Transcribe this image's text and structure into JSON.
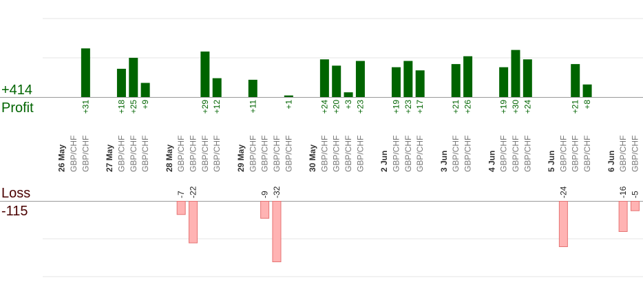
{
  "chart_data": {
    "type": "bar",
    "profit_label": "Profit",
    "profit_total": "+414",
    "loss_label": "Loss",
    "loss_total": "-115",
    "colors": {
      "profit_bar": "#006400",
      "profit_text": "#006400",
      "loss_bar": "#ffb3b3",
      "loss_bar_stroke": "#e57373",
      "loss_label_text": "#4a0000",
      "grid": "#e6e6e6",
      "axis": "#999999",
      "date_text": "#333333",
      "symbol_text": "#777777"
    },
    "columns": [
      {
        "kind": "date",
        "text": "26 May"
      },
      {
        "kind": "trade",
        "symbol": "GBP/CHF",
        "pnl": null
      },
      {
        "kind": "trade",
        "symbol": "GBP/CHF",
        "pnl": 31
      },
      {
        "kind": "gap"
      },
      {
        "kind": "date",
        "text": "27 May"
      },
      {
        "kind": "trade",
        "symbol": "GBP/CHF",
        "pnl": 18
      },
      {
        "kind": "trade",
        "symbol": "GBP/CHF",
        "pnl": 25
      },
      {
        "kind": "trade",
        "symbol": "GBP/CHF",
        "pnl": 9
      },
      {
        "kind": "gap"
      },
      {
        "kind": "date",
        "text": "28 May"
      },
      {
        "kind": "trade",
        "symbol": "GBP/CHF",
        "pnl": -7
      },
      {
        "kind": "trade",
        "symbol": "GBP/CHF",
        "pnl": -22
      },
      {
        "kind": "trade",
        "symbol": "GBP/CHF",
        "pnl": 29
      },
      {
        "kind": "trade",
        "symbol": "GBP/CHF",
        "pnl": 12
      },
      {
        "kind": "gap"
      },
      {
        "kind": "date",
        "text": "29 May"
      },
      {
        "kind": "trade",
        "symbol": "GBP/CHF",
        "pnl": 11
      },
      {
        "kind": "trade",
        "symbol": "GBP/CHF",
        "pnl": -9
      },
      {
        "kind": "trade",
        "symbol": "GBP/CHF",
        "pnl": -32
      },
      {
        "kind": "trade",
        "symbol": "GBP/CHF",
        "pnl": 1
      },
      {
        "kind": "gap"
      },
      {
        "kind": "date",
        "text": "30 May"
      },
      {
        "kind": "trade",
        "symbol": "GBP/CHF",
        "pnl": 24
      },
      {
        "kind": "trade",
        "symbol": "GBP/CHF",
        "pnl": 20
      },
      {
        "kind": "trade",
        "symbol": "GBP/CHF",
        "pnl": 3
      },
      {
        "kind": "trade",
        "symbol": "GBP/CHF",
        "pnl": 23
      },
      {
        "kind": "gap"
      },
      {
        "kind": "date",
        "text": "2 Jun"
      },
      {
        "kind": "trade",
        "symbol": "GBP/CHF",
        "pnl": 19
      },
      {
        "kind": "trade",
        "symbol": "GBP/CHF",
        "pnl": 23
      },
      {
        "kind": "trade",
        "symbol": "GBP/CHF",
        "pnl": 17
      },
      {
        "kind": "gap"
      },
      {
        "kind": "date",
        "text": "3 Jun"
      },
      {
        "kind": "trade",
        "symbol": "GBP/CHF",
        "pnl": 21
      },
      {
        "kind": "trade",
        "symbol": "GBP/CHF",
        "pnl": 26
      },
      {
        "kind": "gap"
      },
      {
        "kind": "date",
        "text": "4 Jun"
      },
      {
        "kind": "trade",
        "symbol": "GBP/CHF",
        "pnl": 19
      },
      {
        "kind": "trade",
        "symbol": "GBP/CHF",
        "pnl": 30
      },
      {
        "kind": "trade",
        "symbol": "GBP/CHF",
        "pnl": 24
      },
      {
        "kind": "gap"
      },
      {
        "kind": "date",
        "text": "5 Jun"
      },
      {
        "kind": "trade",
        "symbol": "GBP/CHF",
        "pnl": -24
      },
      {
        "kind": "trade",
        "symbol": "GBP/CHF",
        "pnl": 21
      },
      {
        "kind": "trade",
        "symbol": "GBP/CHF",
        "pnl": 8
      },
      {
        "kind": "gap"
      },
      {
        "kind": "date",
        "text": "6 Jun"
      },
      {
        "kind": "trade",
        "symbol": "GBP/CHF",
        "pnl": -16
      },
      {
        "kind": "trade",
        "symbol": "GBP/CHF",
        "pnl": -5
      }
    ],
    "profit_axis_max": 25,
    "loss_axis_max": 20,
    "grid": true
  }
}
